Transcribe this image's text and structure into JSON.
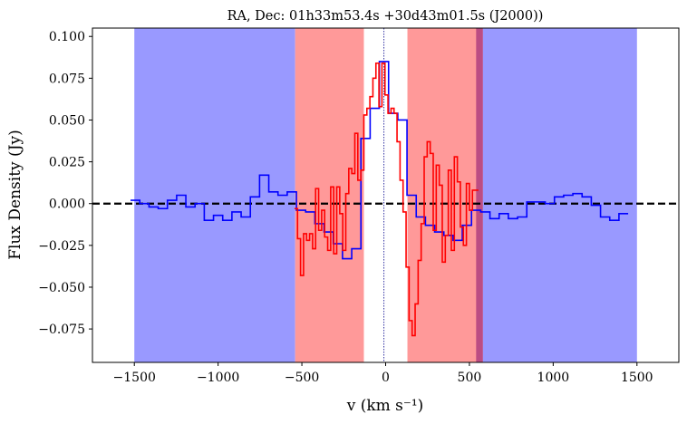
{
  "chart_data": {
    "type": "line",
    "title": "RA, Dec: 01h33m53.4s +30d43m01.5s (J2000))",
    "xlabel": "v (km s⁻¹)",
    "ylabel": "Flux Density (Jy)",
    "xlim": [
      -1750,
      1750
    ],
    "ylim": [
      -0.095,
      0.105
    ],
    "xticks": [
      -1500,
      -1000,
      -500,
      0,
      500,
      1000,
      1500
    ],
    "xtick_labels": [
      "−1500",
      "−1000",
      "−500",
      "0",
      "500",
      "1000",
      "1500"
    ],
    "yticks": [
      -0.075,
      -0.05,
      -0.025,
      0.0,
      0.025,
      0.05,
      0.075,
      0.1
    ],
    "ytick_labels": [
      "−0.075",
      "−0.050",
      "−0.025",
      "0.000",
      "0.025",
      "0.050",
      "0.075",
      "0.100"
    ],
    "grid": false,
    "shaded_regions": [
      {
        "name": "blue-region-left",
        "from": -1500,
        "to": -540,
        "color": "#9999ff"
      },
      {
        "name": "blue-region-right",
        "from": 540,
        "to": 1500,
        "color": "#9999ff"
      },
      {
        "name": "red-region-left",
        "from": -540,
        "to": -130,
        "color": "#ff9999"
      },
      {
        "name": "red-region-right",
        "from": 130,
        "to": 580,
        "color": "#ff9999"
      }
    ],
    "reference_lines": [
      {
        "name": "zero-flux-line",
        "orientation": "horizontal",
        "value": 0.0,
        "color": "#000000",
        "style": "dashed"
      },
      {
        "name": "systemic-velocity-line",
        "orientation": "vertical",
        "value": -10,
        "color": "#00008b",
        "style": "dotted"
      }
    ],
    "series": [
      {
        "name": "blue spectrum",
        "color": "#0000ff",
        "style": "steps",
        "x": [
          -1495,
          -1440,
          -1385,
          -1330,
          -1275,
          -1220,
          -1165,
          -1110,
          -1055,
          -1000,
          -945,
          -890,
          -835,
          -780,
          -725,
          -670,
          -615,
          -560,
          -505,
          -450,
          -395,
          -340,
          -285,
          -230,
          -175,
          -120,
          -65,
          -10,
          45,
          100,
          155,
          210,
          265,
          320,
          375,
          430,
          485,
          540,
          595,
          650,
          705,
          760,
          815,
          870,
          925,
          980,
          1035,
          1090,
          1145,
          1200,
          1255,
          1310,
          1365,
          1420
        ],
        "y": [
          0.002,
          0.0,
          -0.002,
          -0.003,
          0.002,
          0.005,
          -0.002,
          0.0,
          -0.01,
          -0.007,
          -0.01,
          -0.005,
          -0.008,
          0.004,
          0.017,
          0.007,
          0.005,
          0.007,
          -0.004,
          -0.005,
          -0.012,
          -0.017,
          -0.024,
          -0.033,
          -0.027,
          0.039,
          0.057,
          0.085,
          0.054,
          0.05,
          0.005,
          -0.008,
          -0.013,
          -0.017,
          -0.019,
          -0.022,
          -0.013,
          -0.004,
          -0.005,
          -0.009,
          -0.006,
          -0.009,
          -0.008,
          0.001,
          0.001,
          0.0,
          0.004,
          0.005,
          0.006,
          0.004,
          -0.001,
          -0.008,
          -0.01,
          -0.006
        ]
      },
      {
        "name": "red spectrum",
        "color": "#ff0000",
        "style": "steps",
        "x": [
          -535,
          -517,
          -499,
          -481,
          -463,
          -445,
          -427,
          -409,
          -391,
          -373,
          -355,
          -337,
          -319,
          -301,
          -283,
          -265,
          -247,
          -229,
          -211,
          -193,
          -175,
          -157,
          -139,
          -121,
          -103,
          -85,
          -67,
          -49,
          -31,
          -13,
          5,
          23,
          41,
          59,
          77,
          95,
          113,
          131,
          149,
          167,
          185,
          203,
          221,
          239,
          257,
          275,
          293,
          311,
          329,
          347,
          365,
          383,
          401,
          419,
          437,
          455,
          473,
          491,
          509,
          527,
          545
        ],
        "y": [
          -0.003,
          -0.021,
          -0.043,
          -0.018,
          -0.022,
          -0.018,
          -0.027,
          0.009,
          -0.016,
          -0.004,
          -0.02,
          -0.028,
          0.01,
          -0.03,
          0.01,
          -0.006,
          -0.028,
          0.006,
          0.021,
          0.018,
          0.042,
          0.014,
          0.02,
          0.053,
          0.057,
          0.064,
          0.075,
          0.084,
          0.058,
          0.084,
          0.065,
          0.054,
          0.057,
          0.054,
          0.037,
          0.014,
          -0.005,
          -0.038,
          -0.07,
          -0.079,
          -0.06,
          -0.034,
          -0.012,
          0.028,
          0.037,
          0.03,
          -0.016,
          0.023,
          0.011,
          -0.035,
          -0.019,
          0.02,
          -0.028,
          0.028,
          0.013,
          -0.014,
          -0.025,
          0.012,
          -0.004,
          0.008,
          0.008
        ]
      }
    ]
  }
}
